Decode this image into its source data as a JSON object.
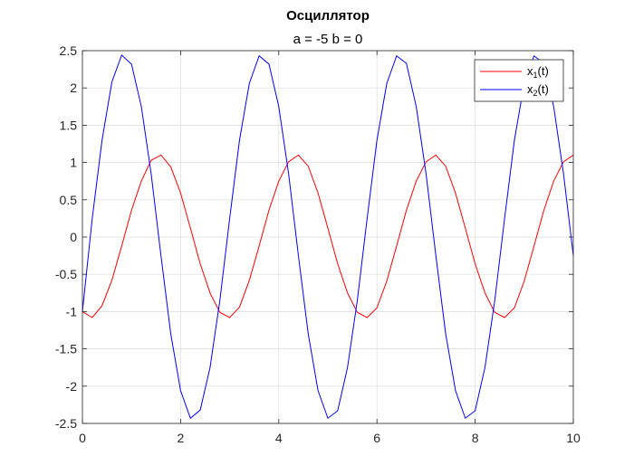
{
  "chart_data": {
    "type": "line",
    "title": "Осциллятор",
    "subtitle": "a = -5 b = 0",
    "xlabel": "",
    "ylabel": "",
    "xlim": [
      0,
      10
    ],
    "ylim": [
      -2.5,
      2.5
    ],
    "x_ticks": [
      0,
      2,
      4,
      6,
      8,
      10
    ],
    "y_ticks": [
      -2.5,
      -2,
      -1.5,
      -1,
      -0.5,
      0,
      0.5,
      1,
      1.5,
      2,
      2.5
    ],
    "x_tick_labels": [
      "0",
      "2",
      "4",
      "6",
      "8",
      "10"
    ],
    "y_tick_labels": [
      "-2.5",
      "-2",
      "-1.5",
      "-1",
      "-0.5",
      "0",
      "0.5",
      "1",
      "1.5",
      "2",
      "2.5"
    ],
    "grid": true,
    "legend_position": "top-right",
    "x": [
      0,
      0.2,
      0.4,
      0.6,
      0.8,
      1.0,
      1.2,
      1.4,
      1.6,
      1.8,
      2.0,
      2.2,
      2.4,
      2.6,
      2.8,
      3.0,
      3.2,
      3.4,
      3.6,
      3.8,
      4.0,
      4.2,
      4.4,
      4.6,
      4.8,
      5.0,
      5.2,
      5.4,
      5.6,
      5.8,
      6.0,
      6.2,
      6.4,
      6.6,
      6.8,
      7.0,
      7.2,
      7.4,
      7.6,
      7.8,
      8.0,
      8.2,
      8.4,
      8.6,
      8.8,
      9.0,
      9.2,
      9.4,
      9.6,
      9.8,
      10.0
    ],
    "series": [
      {
        "name_main": "x",
        "name_sub": "1",
        "name_suffix": "(t)",
        "color": "#ff0000",
        "values": [
          -1.0,
          -1.08,
          -0.92,
          -0.58,
          -0.12,
          0.36,
          0.75,
          1.03,
          1.1,
          0.94,
          0.59,
          0.12,
          -0.36,
          -0.75,
          -1.01,
          -1.08,
          -0.94,
          -0.58,
          -0.12,
          0.36,
          0.75,
          1.01,
          1.1,
          0.95,
          0.59,
          0.12,
          -0.36,
          -0.75,
          -1.01,
          -1.08,
          -0.95,
          -0.59,
          -0.12,
          0.36,
          0.75,
          1.01,
          1.1,
          0.95,
          0.59,
          0.12,
          -0.36,
          -0.75,
          -1.01,
          -1.08,
          -0.95,
          -0.59,
          -0.12,
          0.36,
          0.75,
          1.01,
          1.1
        ]
      },
      {
        "name_main": "x",
        "name_sub": "2",
        "name_suffix": "(t)",
        "color": "#0000ff",
        "values": [
          -1.0,
          0.25,
          1.3,
          2.08,
          2.44,
          2.32,
          1.75,
          0.85,
          -0.25,
          -1.3,
          -2.06,
          -2.43,
          -2.32,
          -1.75,
          -0.85,
          0.25,
          1.3,
          2.06,
          2.43,
          2.32,
          1.75,
          0.85,
          -0.25,
          -1.3,
          -2.06,
          -2.43,
          -2.33,
          -1.75,
          -0.85,
          0.25,
          1.3,
          2.06,
          2.43,
          2.33,
          1.75,
          0.85,
          -0.25,
          -1.3,
          -2.06,
          -2.43,
          -2.33,
          -1.75,
          -0.85,
          0.25,
          1.3,
          2.06,
          2.43,
          2.33,
          1.75,
          0.85,
          -0.25
        ]
      }
    ]
  }
}
